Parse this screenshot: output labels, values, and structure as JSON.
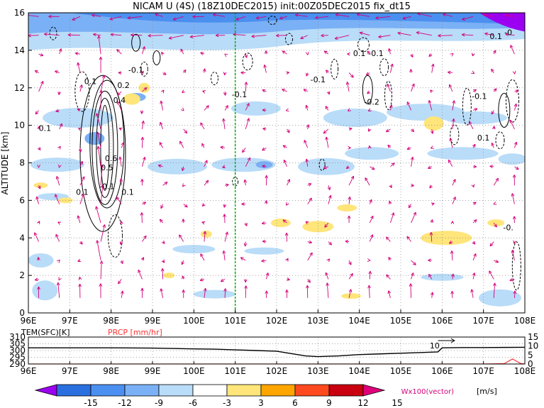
{
  "chart_data": [
    {
      "type": "heatmap",
      "title": "NICAM U (4S) (18Z10DEC2015) init:00Z05DEC2015 fix_dt15",
      "ylabel": "ALTITUDE [km]",
      "xlabel": "",
      "x_ticks": [
        "96E",
        "97E",
        "98E",
        "99E",
        "100E",
        "101E",
        "102E",
        "103E",
        "104E",
        "105E",
        "106E",
        "107E",
        "108E"
      ],
      "y_ticks": [
        "0",
        "2",
        "4",
        "6",
        "8",
        "10",
        "12",
        "14",
        "16"
      ],
      "xlim": [
        96,
        108
      ],
      "ylim": [
        0,
        16
      ],
      "grid": true,
      "marker_line_lon": 101,
      "contour_labels": [
        {
          "text": "0.1",
          "lon": 97.5,
          "alt": 12.2
        },
        {
          "text": "-0.1",
          "lon": 98.6,
          "alt": 12.8
        },
        {
          "text": "0.2",
          "lon": 98.3,
          "alt": 12.0
        },
        {
          "text": "0.4",
          "lon": 98.2,
          "alt": 11.2
        },
        {
          "text": "0.1",
          "lon": 96.4,
          "alt": 9.7
        },
        {
          "text": "0.6",
          "lon": 98.0,
          "alt": 8.1
        },
        {
          "text": "0.5",
          "lon": 97.9,
          "alt": 7.6
        },
        {
          "text": "0.1",
          "lon": 97.3,
          "alt": 6.3
        },
        {
          "text": "-0.1",
          "lon": 97.9,
          "alt": 6.6
        },
        {
          "text": "0.1",
          "lon": 98.4,
          "alt": 6.3
        },
        {
          "text": "-0.1",
          "lon": 101.1,
          "alt": 11.5
        },
        {
          "text": "-0.1",
          "lon": 103.0,
          "alt": 12.3
        },
        {
          "text": "0.1",
          "lon": 104.0,
          "alt": 13.7
        },
        {
          "text": "-0.1",
          "lon": 104.4,
          "alt": 13.7
        },
        {
          "text": "-0.2",
          "lon": 104.3,
          "alt": 11.1
        },
        {
          "text": "-0.1",
          "lon": 106.9,
          "alt": 11.4
        },
        {
          "text": "0.1",
          "lon": 107.0,
          "alt": 9.2
        },
        {
          "text": "0.1",
          "lon": 107.3,
          "alt": 14.6
        },
        {
          "text": "-0",
          "lon": 107.6,
          "alt": 14.8
        },
        {
          "text": "-0.",
          "lon": 107.6,
          "alt": 4.4
        }
      ]
    },
    {
      "type": "line",
      "left_label": "TEM(SFC)[K]",
      "right_label": "PRCP [mm/hr]",
      "x_ticks": [
        "96E",
        "97E",
        "98E",
        "99E",
        "100E",
        "101E",
        "102E",
        "103E",
        "104E",
        "105E",
        "106E",
        "107E",
        "108E"
      ],
      "y_left_ticks": [
        "290",
        "295",
        "300",
        "305",
        "310"
      ],
      "y_right_ticks": [
        "0",
        "5",
        "10",
        "15"
      ],
      "ylim_left": [
        290,
        310
      ],
      "ylim_right": [
        0,
        15
      ],
      "series": [
        {
          "x": [
            96,
            97,
            98,
            99,
            100,
            100.5,
            101,
            101.5,
            102,
            102.3,
            102.7,
            103,
            103.5,
            104,
            104.5,
            105,
            105.5,
            105.9,
            106,
            106.5,
            107,
            107.5,
            108
          ],
          "y": [
            302,
            302,
            302,
            301.8,
            301.2,
            301,
            300.5,
            300,
            299.5,
            298,
            296,
            295.5,
            296,
            297,
            297.5,
            298,
            298.5,
            299,
            302,
            302.2,
            302.2,
            302.3,
            302.4
          ]
        },
        {
          "x": [
            96,
            97,
            98,
            99,
            100,
            101,
            102,
            103,
            104,
            105,
            106,
            107,
            107.5,
            107.7,
            107.9,
            108
          ],
          "y": [
            0,
            0,
            0,
            0,
            0,
            0,
            0,
            0,
            0,
            0,
            0,
            0,
            0.2,
            2.8,
            0.3,
            0
          ]
        }
      ],
      "annotation": "10"
    },
    {
      "type": "colorbar",
      "levels": [
        "-15",
        "-12",
        "-9",
        "-6",
        "-3",
        "3",
        "6",
        "9",
        "12",
        "15"
      ],
      "colors": [
        "#9b00f0",
        "#2a6fe0",
        "#4b8ff0",
        "#7ab0f5",
        "#b9dcf8",
        "#ffffff",
        "#ffe57a",
        "#ffa500",
        "#ff4a1f",
        "#c8000f",
        "#e0007a"
      ],
      "unit": "[m/s]",
      "vector_note": "Wx100(vector)"
    }
  ]
}
